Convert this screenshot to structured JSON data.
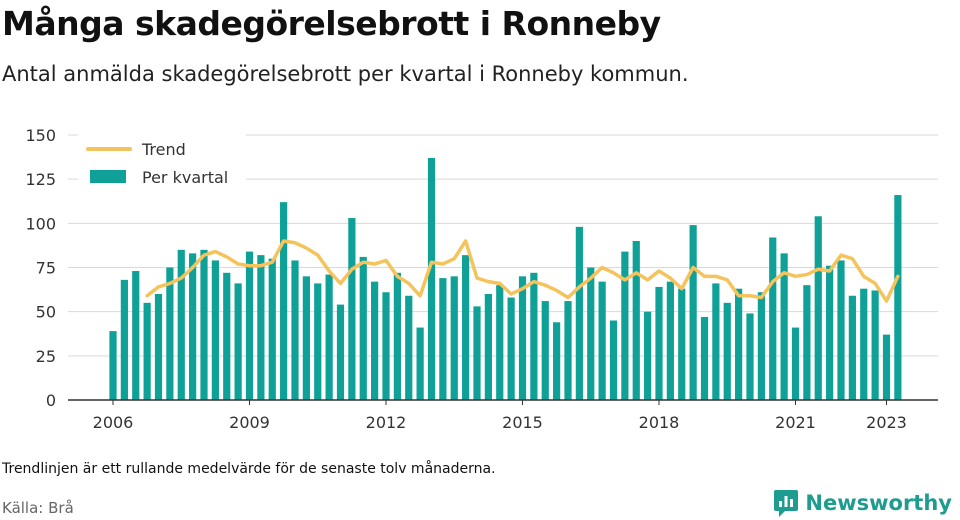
{
  "header": {
    "title": "Många skadegörelsebrott i Ronneby",
    "subtitle": "Antal anmälda skadegörelsebrott per kvartal i Ronneby kommun."
  },
  "footer": {
    "note": "Trendlinjen är ett rullande medelvärde för de senaste tolv månaderna.",
    "source": "Källa: Brå",
    "brand": "Newsworthy"
  },
  "colors": {
    "bar": "#0fa197",
    "trend": "#f5c35b",
    "grid": "#d9d9d9",
    "axis": "#333333",
    "brand": "#1e9c8f"
  },
  "chart_data": {
    "type": "bar",
    "x_start": "2006 Q1",
    "x_ticks": [
      "2006",
      "2009",
      "2012",
      "2015",
      "2018",
      "2021",
      "2023"
    ],
    "y_ticks": [
      0,
      25,
      50,
      75,
      100,
      125,
      150
    ],
    "ylim": [
      0,
      150
    ],
    "grid": true,
    "legend_position": "top-left",
    "series": [
      {
        "name": "Per kvartal",
        "type": "bar",
        "values": [
          39,
          68,
          73,
          55,
          60,
          75,
          85,
          83,
          85,
          79,
          72,
          66,
          84,
          82,
          80,
          112,
          79,
          70,
          66,
          71,
          54,
          103,
          81,
          67,
          61,
          72,
          59,
          41,
          137,
          69,
          70,
          82,
          53,
          60,
          65,
          58,
          70,
          72,
          56,
          44,
          56,
          98,
          75,
          67,
          45,
          84,
          90,
          50,
          64,
          67,
          63,
          99,
          47,
          66,
          55,
          63,
          49,
          61,
          92,
          83,
          41,
          65,
          104,
          76,
          79,
          59,
          63,
          62,
          37,
          116
        ]
      },
      {
        "name": "Trend",
        "type": "line",
        "values": [
          null,
          null,
          null,
          59,
          64,
          66,
          69,
          75,
          82,
          84,
          81,
          77,
          76,
          76,
          78,
          90,
          89,
          86,
          82,
          73,
          66,
          74,
          78,
          77,
          79,
          70,
          66,
          59,
          78,
          77,
          80,
          90,
          69,
          67,
          66,
          60,
          63,
          67,
          65,
          62,
          58,
          64,
          69,
          75,
          72,
          68,
          72,
          68,
          73,
          69,
          63,
          75,
          70,
          70,
          68,
          59,
          59,
          58,
          67,
          72,
          70,
          71,
          74,
          73,
          82,
          80,
          70,
          66,
          56,
          70
        ]
      }
    ]
  }
}
